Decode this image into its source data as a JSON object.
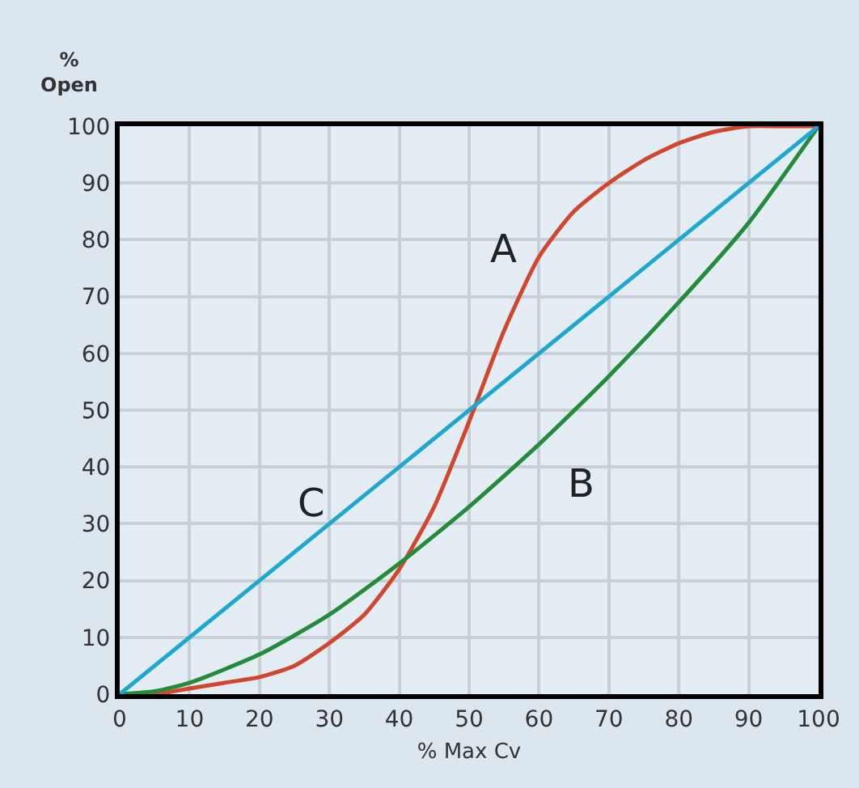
{
  "chart_data": {
    "type": "line",
    "xlabel": "% Max Cv",
    "ylabel": "%\nOpen",
    "xlim": [
      0,
      100
    ],
    "ylim": [
      0,
      100
    ],
    "xticks": [
      0,
      10,
      20,
      30,
      40,
      50,
      60,
      70,
      80,
      90,
      100
    ],
    "yticks": [
      0,
      10,
      20,
      30,
      40,
      50,
      60,
      70,
      80,
      90,
      100
    ],
    "grid": true,
    "marker": "none",
    "line_style": "solid",
    "legend": false,
    "series": [
      {
        "name": "A",
        "color": "#d0462e",
        "x": [
          0,
          5,
          10,
          15,
          20,
          25,
          30,
          35,
          40,
          45,
          50,
          55,
          60,
          65,
          70,
          75,
          80,
          85,
          90,
          95,
          100
        ],
        "values": [
          0,
          0,
          1,
          2,
          3,
          5,
          9,
          14,
          22,
          33,
          48,
          64,
          77,
          85,
          90,
          94,
          97,
          99,
          100,
          100,
          100
        ]
      },
      {
        "name": "B",
        "color": "#238b3a",
        "x": [
          0,
          5,
          10,
          20,
          30,
          40,
          50,
          60,
          70,
          80,
          90,
          100
        ],
        "values": [
          0,
          0.5,
          2,
          7,
          14,
          23,
          33,
          44,
          56,
          69,
          83,
          100
        ]
      },
      {
        "name": "C",
        "color": "#1ea8d0",
        "x": [
          0,
          100
        ],
        "values": [
          0,
          100
        ]
      }
    ]
  }
}
